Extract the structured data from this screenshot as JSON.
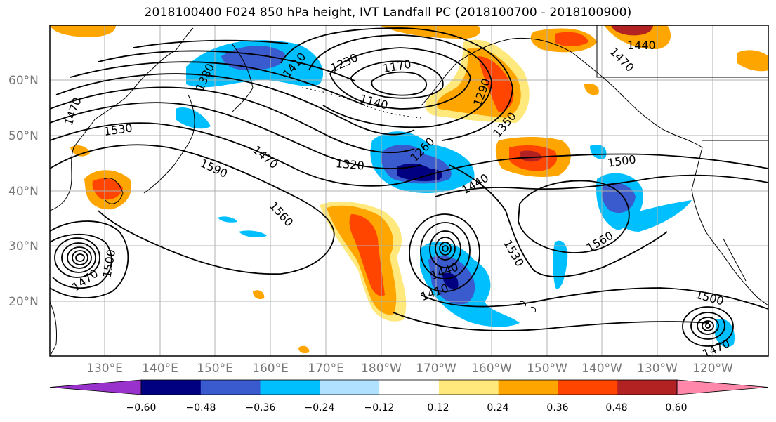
{
  "title": "2018100400 F024 850 hPa height, IVT Landfall PC (2018100700 - 2018100900)",
  "map": {
    "longitude_labels": [
      "130°E",
      "140°E",
      "150°E",
      "160°E",
      "170°E",
      "180°W",
      "170°W",
      "160°W",
      "150°W",
      "140°W",
      "130°W",
      "120°W"
    ],
    "latitude_labels": [
      "60°N",
      "50°N",
      "40°N",
      "30°N",
      "20°N"
    ],
    "contour_labels": [
      {
        "text": "1470"
      },
      {
        "text": "1530"
      },
      {
        "text": "1590"
      },
      {
        "text": "1560"
      },
      {
        "text": "1500"
      },
      {
        "text": "1470"
      },
      {
        "text": "1380"
      },
      {
        "text": "1410"
      },
      {
        "text": "1230"
      },
      {
        "text": "1170"
      },
      {
        "text": "1140"
      },
      {
        "text": "1290"
      },
      {
        "text": "1350"
      },
      {
        "text": "1260"
      },
      {
        "text": "1320"
      },
      {
        "text": "1470"
      },
      {
        "text": "1440"
      },
      {
        "text": "1440"
      },
      {
        "text": "1410"
      },
      {
        "text": "1500"
      },
      {
        "text": "1560"
      },
      {
        "text": "1530"
      },
      {
        "text": "1440"
      },
      {
        "text": "1470"
      },
      {
        "text": "1500"
      },
      {
        "text": "1470"
      }
    ],
    "colors": {
      "land_outline": "#000000",
      "grid": "#b0b0b0",
      "contour": "#000000"
    }
  },
  "colorbar": {
    "ticks": [
      "−0.60",
      "−0.48",
      "−0.36",
      "−0.24",
      "−0.12",
      "0.12",
      "0.24",
      "0.36",
      "0.48",
      "0.60"
    ],
    "colors": [
      "#9932cc",
      "#000080",
      "#3a5bcd",
      "#00bfff",
      "#b0e2ff",
      "#ffffff",
      "#ffe87c",
      "#ffa500",
      "#ff4500",
      "#b22222",
      "#ff88aa"
    ]
  }
}
